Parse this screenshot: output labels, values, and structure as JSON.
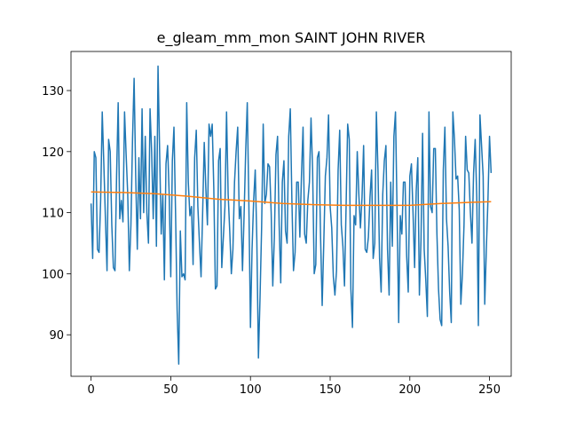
{
  "chart_data": {
    "type": "line",
    "title": "e_gleam_mm_mon SAINT JOHN RIVER",
    "x": [
      0,
      1,
      2,
      3,
      4,
      5,
      6,
      7,
      8,
      9,
      10,
      11,
      12,
      13,
      14,
      15,
      16,
      17,
      18,
      19,
      20,
      21,
      22,
      23,
      24,
      25,
      26,
      27,
      28,
      29,
      30,
      31,
      32,
      33,
      34,
      35,
      36,
      37,
      38,
      39,
      40,
      41,
      42,
      43,
      44,
      45,
      46,
      47,
      48,
      49,
      50,
      51,
      52,
      53,
      54,
      55,
      56,
      57,
      58,
      59,
      60,
      61,
      62,
      63,
      64,
      65,
      66,
      67,
      68,
      69,
      70,
      71,
      72,
      73,
      74,
      75,
      76,
      77,
      78,
      79,
      80,
      81,
      82,
      83,
      84,
      85,
      86,
      87,
      88,
      89,
      90,
      91,
      92,
      93,
      94,
      95,
      96,
      97,
      98,
      99,
      100,
      101,
      102,
      103,
      104,
      105,
      106,
      107,
      108,
      109,
      110,
      111,
      112,
      113,
      114,
      115,
      116,
      117,
      118,
      119,
      120,
      121,
      122,
      123,
      124,
      125,
      126,
      127,
      128,
      129,
      130,
      131,
      132,
      133,
      134,
      135,
      136,
      137,
      138,
      139,
      140,
      141,
      142,
      143,
      144,
      145,
      146,
      147,
      148,
      149,
      150,
      151,
      152,
      153,
      154,
      155,
      156,
      157,
      158,
      159,
      160,
      161,
      162,
      163,
      164,
      165,
      166,
      167,
      168,
      169,
      170,
      171,
      172,
      173,
      174,
      175,
      176,
      177,
      178,
      179,
      180,
      181,
      182,
      183,
      184,
      185,
      186,
      187,
      188,
      189,
      190,
      191,
      192,
      193,
      194,
      195,
      196,
      197,
      198,
      199,
      200,
      201,
      202,
      203,
      204,
      205,
      206,
      207,
      208,
      209,
      210,
      211,
      212,
      213,
      214,
      215,
      216,
      217,
      218,
      219,
      220,
      221,
      222,
      223,
      224,
      225,
      226,
      227,
      228,
      229,
      230,
      231,
      232,
      233,
      234,
      235,
      236,
      237,
      238,
      239,
      240,
      241,
      242,
      243,
      244,
      245,
      246,
      247,
      248,
      249,
      250,
      251
    ],
    "series": [
      {
        "color": "#1f77b4",
        "values": [
          111.5,
          102.5,
          120,
          119,
          104,
          103.5,
          112,
          126.5,
          118,
          109,
          100.5,
          122,
          120,
          108,
          101,
          100.5,
          116,
          128,
          109,
          112,
          108.5,
          126.5,
          119.5,
          113,
          100.5,
          108,
          122,
          132,
          116,
          104,
          119,
          109,
          127,
          110,
          122.5,
          110,
          105,
          127,
          120,
          109,
          122.5,
          104.5,
          134,
          120,
          106.5,
          113,
          99,
          118,
          121,
          113,
          99.5,
          118.5,
          124,
          110,
          94,
          85.2,
          107,
          99.5,
          100,
          99,
          128,
          115,
          109.5,
          111,
          101.5,
          119,
          123.5,
          111,
          105,
          99.5,
          110,
          121.5,
          114,
          108,
          124.5,
          122.5,
          124.5,
          114,
          97.5,
          98,
          118.5,
          120.5,
          101,
          106,
          111,
          126.5,
          113,
          107,
          100,
          104,
          115,
          120,
          124,
          109,
          111,
          100.5,
          109.5,
          120,
          128,
          111.5,
          91.2,
          104,
          112,
          117,
          105.5,
          86.2,
          96,
          107.5,
          124.5,
          111.5,
          113,
          118,
          117.5,
          110,
          98,
          106,
          119.5,
          122.5,
          108,
          98.5,
          115,
          118.5,
          107,
          105,
          122.5,
          127,
          112,
          100.5,
          103.5,
          115,
          115,
          106,
          116,
          124,
          106.5,
          105,
          112,
          115,
          125.5,
          117,
          100,
          101.5,
          119,
          120,
          106,
          94.8,
          105,
          116,
          119,
          126,
          111,
          107.5,
          99.5,
          96.5,
          100.5,
          117,
          123.5,
          108,
          104.5,
          98,
          111,
          124.5,
          122,
          97.5,
          91.2,
          109.5,
          108,
          120,
          113,
          107.5,
          112.5,
          121,
          104,
          103.5,
          106,
          112.5,
          117,
          102.5,
          105,
          126.5,
          117,
          102.5,
          97,
          113,
          118.5,
          121,
          104,
          96.5,
          115,
          104.5,
          122.5,
          126.5,
          110,
          92,
          109.5,
          106.5,
          115,
          115,
          103,
          97,
          116,
          118,
          110,
          101,
          113.5,
          119,
          96.5,
          105.5,
          123,
          104,
          99,
          93,
          126.5,
          111,
          110,
          120.5,
          120.5,
          106.5,
          97.5,
          92.5,
          91.5,
          117,
          124,
          109,
          104.5,
          97,
          92,
          126.5,
          122,
          115.5,
          116,
          110.5,
          95,
          100,
          108,
          122.5,
          117,
          116.5,
          110,
          105,
          116.5,
          122,
          112.5,
          91.5,
          126,
          121,
          116,
          95,
          104,
          112,
          122.5,
          116.5
        ]
      },
      {
        "color": "#ff7f0e",
        "x": [
          0,
          20,
          40,
          60,
          80,
          100,
          120,
          140,
          160,
          180,
          200,
          220,
          240,
          251
        ],
        "values": [
          113.4,
          113.3,
          113.1,
          112.7,
          112.2,
          111.9,
          111.5,
          111.3,
          111.2,
          111.2,
          111.2,
          111.5,
          111.7,
          111.8
        ]
      }
    ],
    "xlim": [
      -12.6,
      263.6
    ],
    "ylim": [
      83.2,
      136.4
    ],
    "xticks": [
      0,
      50,
      100,
      150,
      200,
      250
    ],
    "yticks": [
      90,
      100,
      110,
      120,
      130
    ]
  }
}
